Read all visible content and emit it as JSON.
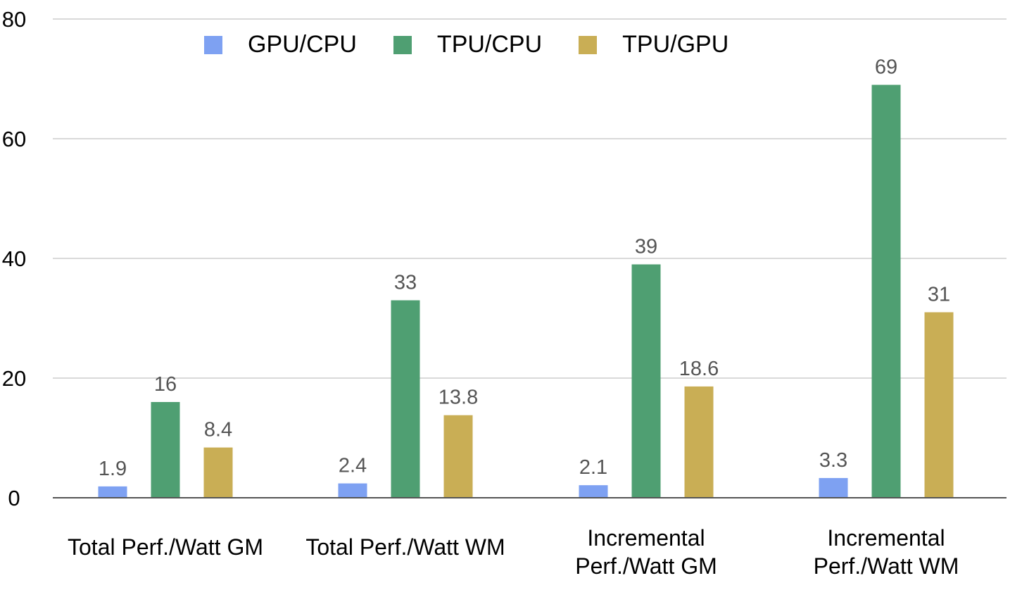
{
  "chart_data": {
    "type": "bar",
    "categories": [
      "Total Perf./Watt GM",
      "Total Perf./Watt WM",
      "Incremental\nPerf./Watt GM",
      "Incremental\nPerf./Watt WM"
    ],
    "series": [
      {
        "name": "GPU/CPU",
        "color": "#7ea1f2",
        "values": [
          1.9,
          2.4,
          2.1,
          3.3
        ],
        "labels": [
          "1.9",
          "2.4",
          "2.1",
          "3.3"
        ]
      },
      {
        "name": "TPU/CPU",
        "color": "#4f9f72",
        "values": [
          16,
          33,
          39,
          69
        ],
        "labels": [
          "16",
          "33",
          "39",
          "69"
        ]
      },
      {
        "name": "TPU/GPU",
        "color": "#c9ae55",
        "values": [
          8.4,
          13.8,
          18.6,
          31
        ],
        "labels": [
          "8.4",
          "13.8",
          "18.6",
          "31"
        ]
      }
    ],
    "ylim": [
      0,
      80
    ],
    "yticks": [
      0,
      20,
      40,
      60,
      80
    ],
    "grid": true,
    "legend_position": "top",
    "title": "",
    "xlabel": "",
    "ylabel": ""
  }
}
